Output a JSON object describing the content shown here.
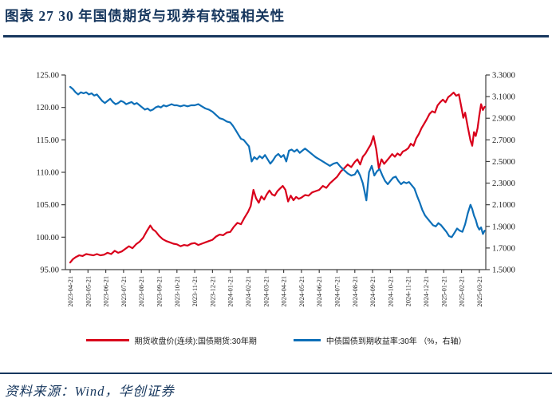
{
  "header": {
    "title": "图表 27  30 年国债期货与现券有较强相关性"
  },
  "footer": {
    "source": "资料来源：Wind，华创证券"
  },
  "colors": {
    "navy": "#17375e",
    "red": "#d9001b",
    "blue": "#0d6fb8",
    "axis": "#404040",
    "tick_text": "#1a1a1a"
  },
  "chart_data": {
    "type": "line",
    "title": "",
    "grid": false,
    "legend_position": "bottom",
    "x_unit": "months since 2023-04-21",
    "x_tick_labels": [
      "2023-04-21",
      "2023-05-21",
      "2023-06-21",
      "2023-07-21",
      "2023-08-21",
      "2023-09-21",
      "2023-10-21",
      "2023-11-21",
      "2023-12-21",
      "2024-01-21",
      "2024-02-21",
      "2024-03-21",
      "2024-04-21",
      "2024-05-21",
      "2024-06-21",
      "2024-07-21",
      "2024-08-21",
      "2024-09-21",
      "2024-10-21",
      "2024-11-21",
      "2024-12-21",
      "2025-01-21",
      "2025-02-21",
      "2025-03-21"
    ],
    "left_axis": {
      "min": 95,
      "max": 125,
      "tick_labels": [
        "125.00",
        "120.00",
        "115.00",
        "110.00",
        "105.00",
        "100.00",
        "95.00"
      ]
    },
    "right_axis": {
      "min": 1.5,
      "max": 3.3,
      "tick_labels": [
        "3.3000",
        "3.1000",
        "2.9000",
        "2.7000",
        "2.5000",
        "2.3000",
        "2.1000",
        "1.9000",
        "1.7000",
        "1.5000"
      ]
    },
    "series": [
      {
        "name": "期货收盘价(连续):国债期货:30年期",
        "axis": "left",
        "color_key": "red",
        "points": [
          [
            0,
            96.1
          ],
          [
            0.15,
            96.6
          ],
          [
            0.3,
            96.9
          ],
          [
            0.5,
            97.2
          ],
          [
            0.7,
            97.1
          ],
          [
            0.9,
            97.4
          ],
          [
            1.1,
            97.3
          ],
          [
            1.3,
            97.2
          ],
          [
            1.5,
            97.4
          ],
          [
            1.7,
            97.2
          ],
          [
            1.9,
            97.3
          ],
          [
            2.1,
            97.6
          ],
          [
            2.3,
            97.4
          ],
          [
            2.5,
            97.9
          ],
          [
            2.7,
            97.6
          ],
          [
            2.9,
            97.8
          ],
          [
            3.1,
            98.2
          ],
          [
            3.3,
            98.6
          ],
          [
            3.5,
            98.3
          ],
          [
            3.7,
            98.9
          ],
          [
            3.9,
            99.3
          ],
          [
            4.1,
            99.9
          ],
          [
            4.3,
            100.9
          ],
          [
            4.5,
            101.8
          ],
          [
            4.65,
            101.2
          ],
          [
            4.8,
            100.9
          ],
          [
            5.0,
            100.2
          ],
          [
            5.2,
            99.7
          ],
          [
            5.4,
            99.4
          ],
          [
            5.6,
            99.2
          ],
          [
            5.8,
            99.0
          ],
          [
            6.0,
            98.9
          ],
          [
            6.2,
            98.6
          ],
          [
            6.4,
            98.8
          ],
          [
            6.6,
            98.7
          ],
          [
            6.8,
            99.0
          ],
          [
            7.0,
            99.1
          ],
          [
            7.2,
            98.8
          ],
          [
            7.4,
            99.0
          ],
          [
            7.6,
            99.2
          ],
          [
            7.8,
            99.4
          ],
          [
            8.0,
            99.6
          ],
          [
            8.2,
            100.1
          ],
          [
            8.4,
            100.4
          ],
          [
            8.6,
            100.3
          ],
          [
            8.8,
            100.7
          ],
          [
            9.0,
            100.8
          ],
          [
            9.2,
            101.6
          ],
          [
            9.4,
            102.2
          ],
          [
            9.6,
            102.0
          ],
          [
            9.8,
            103.0
          ],
          [
            10.0,
            103.9
          ],
          [
            10.15,
            104.8
          ],
          [
            10.3,
            107.3
          ],
          [
            10.45,
            106.0
          ],
          [
            10.6,
            105.3
          ],
          [
            10.75,
            106.3
          ],
          [
            10.9,
            105.8
          ],
          [
            11.05,
            106.6
          ],
          [
            11.2,
            107.2
          ],
          [
            11.35,
            106.6
          ],
          [
            11.5,
            106.4
          ],
          [
            11.65,
            107.1
          ],
          [
            11.8,
            107.5
          ],
          [
            11.95,
            107.9
          ],
          [
            12.1,
            107.3
          ],
          [
            12.25,
            105.5
          ],
          [
            12.4,
            106.4
          ],
          [
            12.55,
            105.7
          ],
          [
            12.7,
            106.2
          ],
          [
            12.85,
            105.9
          ],
          [
            13.0,
            106.1
          ],
          [
            13.2,
            106.5
          ],
          [
            13.4,
            106.4
          ],
          [
            13.6,
            106.9
          ],
          [
            13.8,
            107.1
          ],
          [
            14.0,
            107.3
          ],
          [
            14.2,
            107.9
          ],
          [
            14.4,
            107.6
          ],
          [
            14.6,
            108.3
          ],
          [
            14.8,
            108.8
          ],
          [
            15.0,
            109.3
          ],
          [
            15.2,
            110.1
          ],
          [
            15.4,
            110.6
          ],
          [
            15.6,
            111.2
          ],
          [
            15.8,
            110.8
          ],
          [
            16.0,
            111.6
          ],
          [
            16.15,
            112.0
          ],
          [
            16.3,
            111.2
          ],
          [
            16.45,
            112.4
          ],
          [
            16.6,
            112.9
          ],
          [
            16.75,
            113.6
          ],
          [
            16.9,
            114.3
          ],
          [
            17.05,
            115.6
          ],
          [
            17.2,
            113.6
          ],
          [
            17.35,
            110.6
          ],
          [
            17.5,
            112.0
          ],
          [
            17.65,
            111.3
          ],
          [
            17.8,
            111.8
          ],
          [
            17.95,
            112.3
          ],
          [
            18.1,
            112.8
          ],
          [
            18.25,
            112.4
          ],
          [
            18.4,
            112.9
          ],
          [
            18.55,
            112.6
          ],
          [
            18.7,
            113.2
          ],
          [
            18.85,
            113.4
          ],
          [
            19.0,
            113.7
          ],
          [
            19.15,
            114.4
          ],
          [
            19.3,
            114.1
          ],
          [
            19.45,
            115.2
          ],
          [
            19.6,
            115.9
          ],
          [
            19.75,
            116.8
          ],
          [
            19.9,
            117.5
          ],
          [
            20.05,
            118.2
          ],
          [
            20.2,
            119.0
          ],
          [
            20.35,
            119.4
          ],
          [
            20.5,
            119.2
          ],
          [
            20.65,
            120.3
          ],
          [
            20.8,
            120.8
          ],
          [
            20.95,
            121.2
          ],
          [
            21.1,
            120.8
          ],
          [
            21.25,
            121.6
          ],
          [
            21.4,
            121.9
          ],
          [
            21.55,
            122.3
          ],
          [
            21.7,
            121.8
          ],
          [
            21.85,
            122.0
          ],
          [
            22.0,
            119.9
          ],
          [
            22.1,
            118.4
          ],
          [
            22.2,
            119.2
          ],
          [
            22.35,
            117.0
          ],
          [
            22.5,
            114.9
          ],
          [
            22.6,
            114.1
          ],
          [
            22.7,
            116.2
          ],
          [
            22.8,
            115.6
          ],
          [
            22.9,
            116.8
          ],
          [
            23.0,
            118.8
          ],
          [
            23.1,
            120.5
          ],
          [
            23.2,
            119.6
          ],
          [
            23.3,
            120.1
          ]
        ]
      },
      {
        "name": "中债国债到期收益率:30年 （%，右轴）",
        "axis": "right",
        "color_key": "blue",
        "points": [
          [
            0,
            3.19
          ],
          [
            0.15,
            3.17
          ],
          [
            0.3,
            3.14
          ],
          [
            0.45,
            3.12
          ],
          [
            0.6,
            3.14
          ],
          [
            0.75,
            3.13
          ],
          [
            0.9,
            3.14
          ],
          [
            1.05,
            3.12
          ],
          [
            1.2,
            3.13
          ],
          [
            1.35,
            3.11
          ],
          [
            1.5,
            3.12
          ],
          [
            1.65,
            3.09
          ],
          [
            1.8,
            3.06
          ],
          [
            1.95,
            3.04
          ],
          [
            2.1,
            3.06
          ],
          [
            2.25,
            3.08
          ],
          [
            2.4,
            3.05
          ],
          [
            2.55,
            3.03
          ],
          [
            2.7,
            3.04
          ],
          [
            2.85,
            3.06
          ],
          [
            3.0,
            3.05
          ],
          [
            3.15,
            3.03
          ],
          [
            3.3,
            3.04
          ],
          [
            3.45,
            3.05
          ],
          [
            3.6,
            3.03
          ],
          [
            3.75,
            3.04
          ],
          [
            3.9,
            3.02
          ],
          [
            4.05,
            3.0
          ],
          [
            4.2,
            2.98
          ],
          [
            4.35,
            2.99
          ],
          [
            4.5,
            2.97
          ],
          [
            4.65,
            2.98
          ],
          [
            4.8,
            3.0
          ],
          [
            4.95,
            3.01
          ],
          [
            5.1,
            3.0
          ],
          [
            5.25,
            3.02
          ],
          [
            5.4,
            3.01
          ],
          [
            5.55,
            3.02
          ],
          [
            5.7,
            3.03
          ],
          [
            5.85,
            3.02
          ],
          [
            6.0,
            3.02
          ],
          [
            6.2,
            3.01
          ],
          [
            6.4,
            3.02
          ],
          [
            6.6,
            3.01
          ],
          [
            6.8,
            3.02
          ],
          [
            7.0,
            3.02
          ],
          [
            7.2,
            3.03
          ],
          [
            7.4,
            3.01
          ],
          [
            7.6,
            2.99
          ],
          [
            7.8,
            2.98
          ],
          [
            8.0,
            2.96
          ],
          [
            8.2,
            2.93
          ],
          [
            8.4,
            2.9
          ],
          [
            8.6,
            2.89
          ],
          [
            8.8,
            2.87
          ],
          [
            9.0,
            2.86
          ],
          [
            9.15,
            2.83
          ],
          [
            9.3,
            2.79
          ],
          [
            9.45,
            2.75
          ],
          [
            9.6,
            2.71
          ],
          [
            9.75,
            2.7
          ],
          [
            9.9,
            2.67
          ],
          [
            10.05,
            2.64
          ],
          [
            10.2,
            2.5
          ],
          [
            10.35,
            2.54
          ],
          [
            10.5,
            2.52
          ],
          [
            10.65,
            2.55
          ],
          [
            10.8,
            2.53
          ],
          [
            10.95,
            2.56
          ],
          [
            11.1,
            2.52
          ],
          [
            11.25,
            2.48
          ],
          [
            11.4,
            2.51
          ],
          [
            11.55,
            2.55
          ],
          [
            11.7,
            2.57
          ],
          [
            11.85,
            2.54
          ],
          [
            12.0,
            2.56
          ],
          [
            12.15,
            2.5
          ],
          [
            12.3,
            2.6
          ],
          [
            12.45,
            2.61
          ],
          [
            12.6,
            2.59
          ],
          [
            12.75,
            2.61
          ],
          [
            12.9,
            2.58
          ],
          [
            13.05,
            2.6
          ],
          [
            13.2,
            2.62
          ],
          [
            13.35,
            2.6
          ],
          [
            13.5,
            2.58
          ],
          [
            13.65,
            2.56
          ],
          [
            13.8,
            2.54
          ],
          [
            14.0,
            2.52
          ],
          [
            14.2,
            2.5
          ],
          [
            14.4,
            2.48
          ],
          [
            14.6,
            2.46
          ],
          [
            14.8,
            2.48
          ],
          [
            15.0,
            2.49
          ],
          [
            15.2,
            2.45
          ],
          [
            15.4,
            2.42
          ],
          [
            15.6,
            2.39
          ],
          [
            15.8,
            2.37
          ],
          [
            16.0,
            2.38
          ],
          [
            16.15,
            2.42
          ],
          [
            16.3,
            2.37
          ],
          [
            16.45,
            2.3
          ],
          [
            16.55,
            2.22
          ],
          [
            16.65,
            2.14
          ],
          [
            16.8,
            2.4
          ],
          [
            16.95,
            2.46
          ],
          [
            17.1,
            2.37
          ],
          [
            17.25,
            2.41
          ],
          [
            17.4,
            2.43
          ],
          [
            17.55,
            2.37
          ],
          [
            17.7,
            2.32
          ],
          [
            17.85,
            2.29
          ],
          [
            18.0,
            2.32
          ],
          [
            18.15,
            2.35
          ],
          [
            18.3,
            2.36
          ],
          [
            18.45,
            2.32
          ],
          [
            18.6,
            2.29
          ],
          [
            18.75,
            2.31
          ],
          [
            18.9,
            2.3
          ],
          [
            19.05,
            2.31
          ],
          [
            19.2,
            2.28
          ],
          [
            19.35,
            2.25
          ],
          [
            19.5,
            2.18
          ],
          [
            19.65,
            2.12
          ],
          [
            19.8,
            2.05
          ],
          [
            19.95,
            2.0
          ],
          [
            20.1,
            1.97
          ],
          [
            20.25,
            1.94
          ],
          [
            20.4,
            1.91
          ],
          [
            20.55,
            1.9
          ],
          [
            20.7,
            1.93
          ],
          [
            20.85,
            1.91
          ],
          [
            21.0,
            1.88
          ],
          [
            21.15,
            1.85
          ],
          [
            21.3,
            1.81
          ],
          [
            21.45,
            1.8
          ],
          [
            21.6,
            1.84
          ],
          [
            21.75,
            1.88
          ],
          [
            21.9,
            1.86
          ],
          [
            22.05,
            1.85
          ],
          [
            22.2,
            1.92
          ],
          [
            22.35,
            2.02
          ],
          [
            22.5,
            2.1
          ],
          [
            22.6,
            2.06
          ],
          [
            22.7,
            2.0
          ],
          [
            22.8,
            1.96
          ],
          [
            22.9,
            1.9
          ],
          [
            23.0,
            1.87
          ],
          [
            23.1,
            1.89
          ],
          [
            23.2,
            1.83
          ],
          [
            23.3,
            1.86
          ]
        ]
      }
    ]
  }
}
